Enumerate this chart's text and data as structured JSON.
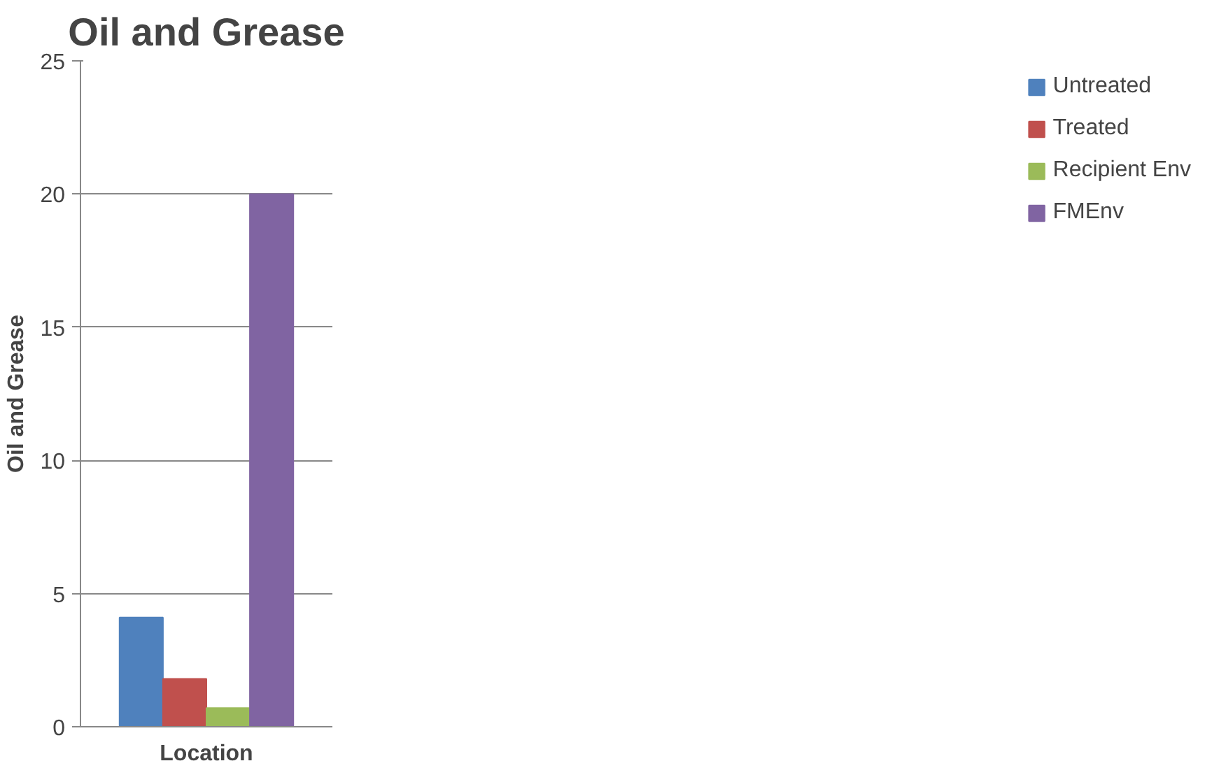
{
  "chart_data": {
    "type": "bar",
    "title": "Oil and Grease",
    "xlabel": "Location",
    "ylabel": "Oil and Grease",
    "categories": [
      null
    ],
    "series": [
      {
        "name": "Untreated",
        "color": "#4f81bd",
        "values": [
          4.1
        ]
      },
      {
        "name": "Treated",
        "color": "#c0504d",
        "values": [
          1.8
        ]
      },
      {
        "name": "Recipient Env",
        "color": "#9bbb59",
        "values": [
          0.7
        ]
      },
      {
        "name": "FMEnv",
        "color": "#8064a2",
        "values": [
          20
        ]
      }
    ],
    "ylim": [
      0,
      25
    ],
    "yticks": [
      0,
      5,
      10,
      15,
      20,
      25
    ],
    "grid": "y",
    "legend": "right"
  }
}
